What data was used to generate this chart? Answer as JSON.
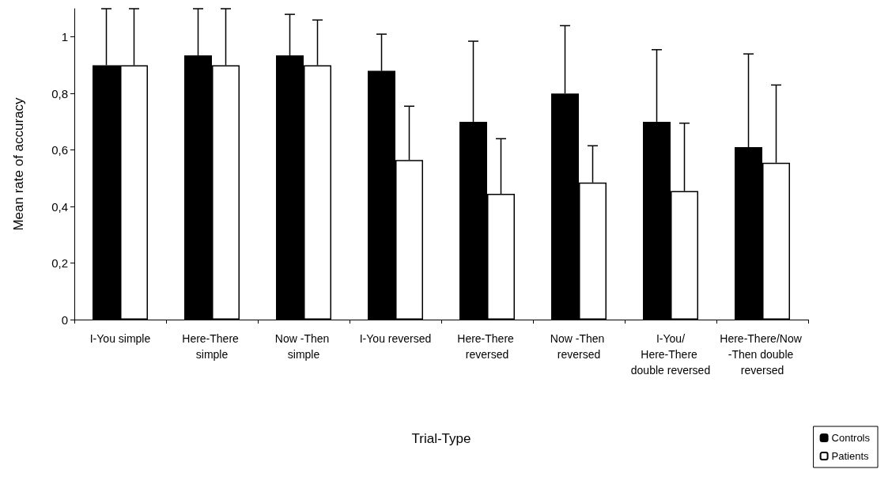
{
  "chart_data": {
    "type": "bar",
    "xlabel": "Trial-Type",
    "ylabel": "Mean rate of accuracy",
    "categories": [
      "I-You simple",
      "Here-There simple",
      "Now -Then simple",
      "I-You reversed",
      "Here-There reversed",
      "Now -Then reversed",
      "I-You/Here-There double reversed",
      "Here-There/Now -Then double reversed"
    ],
    "series": [
      {
        "name": "Controls",
        "color": "#000000",
        "values": [
          0.9,
          0.935,
          0.935,
          0.88,
          0.7,
          0.8,
          0.7,
          0.61
        ],
        "errors": [
          [
            0.9,
            1.1
          ],
          [
            0.935,
            1.1
          ],
          [
            0.935,
            1.08
          ],
          [
            0.88,
            1.01
          ],
          [
            0.7,
            0.985
          ],
          [
            0.8,
            1.04
          ],
          [
            0.7,
            0.955
          ],
          [
            0.61,
            0.94
          ]
        ]
      },
      {
        "name": "Patients",
        "color": "#ffffff",
        "values": [
          0.9,
          0.9,
          0.9,
          0.565,
          0.445,
          0.485,
          0.455,
          0.555
        ],
        "errors": [
          [
            0.9,
            1.1
          ],
          [
            0.9,
            1.1
          ],
          [
            0.9,
            1.06
          ],
          [
            0.565,
            0.755
          ],
          [
            0.445,
            0.64
          ],
          [
            0.485,
            0.615
          ],
          [
            0.455,
            0.695
          ],
          [
            0.555,
            0.83
          ]
        ]
      }
    ],
    "ylim": [
      0,
      1.1
    ],
    "yticks": [
      0,
      {
        "value": 0.2,
        "label": "0,2"
      },
      {
        "value": 0.4,
        "label": "0,4"
      },
      {
        "value": 0.6,
        "label": "0,6"
      },
      {
        "value": 0.8,
        "label": "0,8"
      },
      1
    ],
    "grid": false,
    "legend": "bottom right"
  }
}
